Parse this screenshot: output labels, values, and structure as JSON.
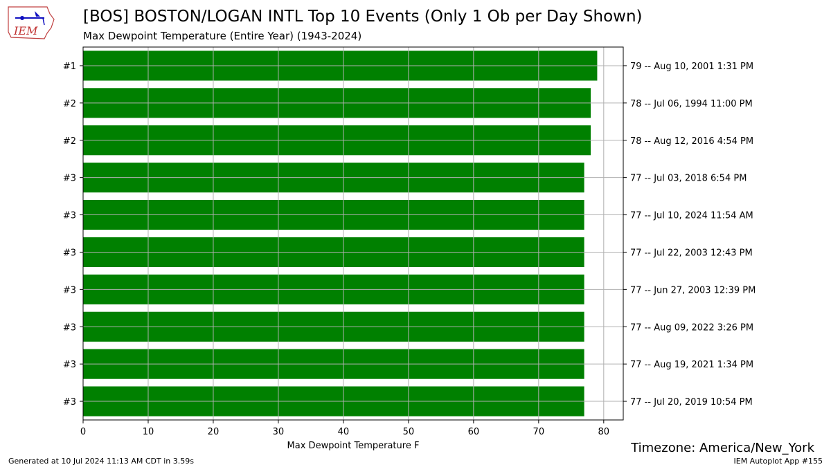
{
  "header": {
    "title": "[BOS] BOSTON/LOGAN INTL Top 10 Events (Only 1 Ob per Day Shown)",
    "subtitle": "Max Dewpoint Temperature  (Entire Year) (1943-2024)"
  },
  "logo": {
    "text": "IEM"
  },
  "footer": {
    "timezone": "Timezone: America/New_York",
    "generated": "Generated at 10 Jul 2024 11:13 AM CDT in 3.59s",
    "app": "IEM Autoplot App #155"
  },
  "chart_data": {
    "type": "bar",
    "orientation": "horizontal",
    "bar_color": "#008000",
    "grid": true,
    "xlabel": "Max Dewpoint Temperature F",
    "xlim": [
      0,
      83
    ],
    "xticks": [
      0,
      10,
      20,
      30,
      40,
      50,
      60,
      70,
      80
    ],
    "categories": [
      "#1",
      "#2",
      "#2",
      "#3",
      "#3",
      "#3",
      "#3",
      "#3",
      "#3",
      "#3"
    ],
    "values": [
      79,
      78,
      78,
      77,
      77,
      77,
      77,
      77,
      77,
      77
    ],
    "right_labels": [
      "79 -- Aug 10, 2001 1:31 PM",
      "78 -- Jul 06, 1994 11:00 PM",
      "78 -- Aug 12, 2016 4:54 PM",
      "77 -- Jul 03, 2018 6:54 PM",
      "77 -- Jul 10, 2024 11:54 AM",
      "77 -- Jul 22, 2003 12:43 PM",
      "77 -- Jun 27, 2003 12:39 PM",
      "77 -- Aug 09, 2022 3:26 PM",
      "77 -- Aug 19, 2021 1:34 PM",
      "77 -- Jul 20, 2019 10:54 PM"
    ]
  }
}
